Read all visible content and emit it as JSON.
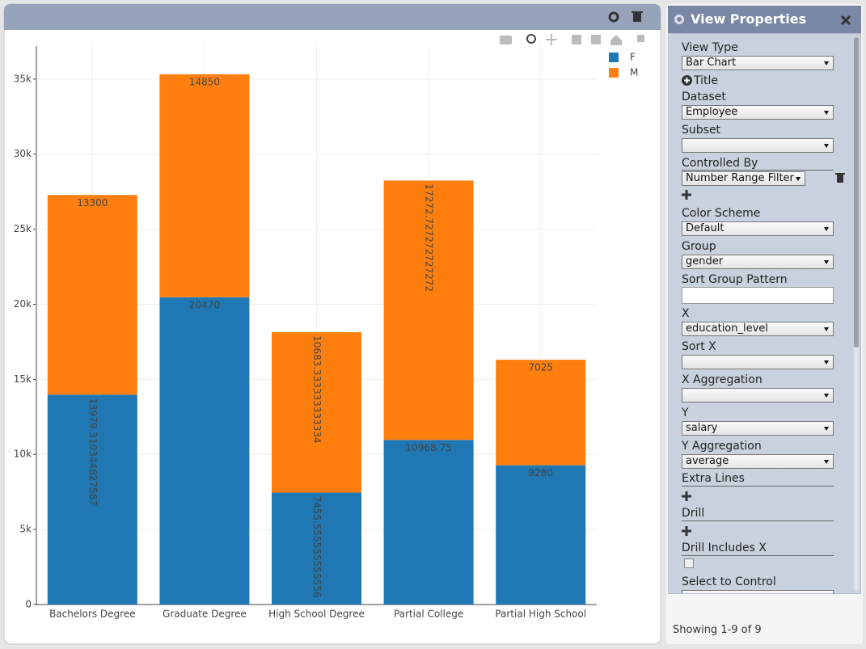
{
  "chart_data": {
    "type": "bar",
    "stacked": true,
    "categories": [
      "Bachelors Degree",
      "Graduate Degree",
      "High School Degree",
      "Partial College",
      "Partial High School"
    ],
    "series": [
      {
        "name": "F",
        "color": "#1f77b4",
        "values": [
          13979.310344827587,
          20470,
          7455.555555555556,
          10968.75,
          9280
        ]
      },
      {
        "name": "M",
        "color": "#ff7f0e",
        "values": [
          13300,
          14850,
          10683.333333333334,
          17272.727272727272,
          7025
        ]
      }
    ],
    "ylim": [
      0,
      37200
    ],
    "yticks": [
      0,
      {
        "value": 5000,
        "label": "5k"
      },
      {
        "value": 10000,
        "label": "10k"
      },
      {
        "value": 15000,
        "label": "15k"
      },
      {
        "value": 20000,
        "label": "20k"
      },
      {
        "value": 25000,
        "label": "25k"
      },
      {
        "value": 30000,
        "label": "30k"
      },
      {
        "value": 35000,
        "label": "35k"
      }
    ],
    "grid": true,
    "legend": "top-right"
  },
  "panel": {
    "title": "View Properties",
    "fields": [
      {
        "label": "View Type",
        "value": "Bar Chart"
      },
      {
        "label": "Title"
      },
      {
        "label": "Dataset",
        "value": "Employee"
      },
      {
        "label": "Subset"
      },
      {
        "label": "Controlled By",
        "value": "Number Range Filter"
      },
      {
        "label": "Color Scheme",
        "value": "Default"
      },
      {
        "label": "Group",
        "value": "gender"
      },
      {
        "label": "Sort Group Pattern"
      },
      {
        "label": "X",
        "value": "education_level"
      },
      {
        "label": "Sort X"
      },
      {
        "label": "X Aggregation"
      },
      {
        "label": "Y",
        "value": "salary"
      },
      {
        "label": "Y Aggregation",
        "value": "average"
      },
      {
        "label": "Extra Lines"
      },
      {
        "label": "Drill"
      },
      {
        "label": "Drill Includes X"
      },
      {
        "label": "Select to Control"
      }
    ],
    "footer": "Showing 1-9 of 9"
  }
}
